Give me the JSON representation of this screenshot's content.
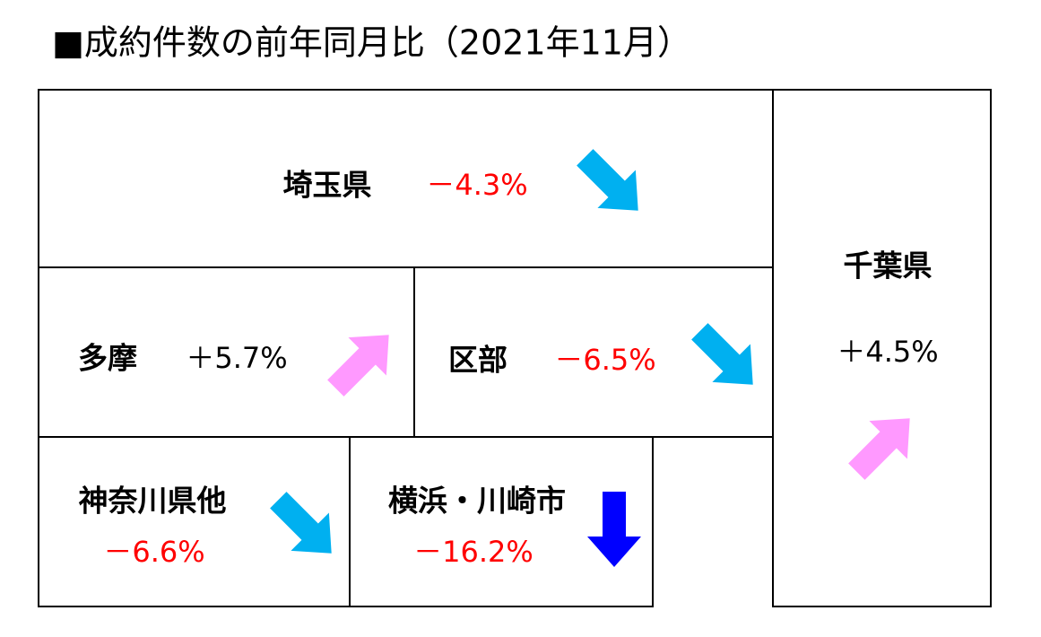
{
  "title": "■成約件数の前年同月比（2021年11月）",
  "regions": [
    {
      "name": "埼玉県",
      "change": "－4.3%"
    },
    {
      "name": "千葉県",
      "change": "＋4.5%"
    },
    {
      "name": "多摩",
      "change": "＋5.7%"
    },
    {
      "name": "区部",
      "change": "－6.5%"
    },
    {
      "name": "神奈川県他",
      "change": "－6.6%"
    },
    {
      "name": "横浜・川崎市",
      "change": "－16.2%"
    }
  ]
}
